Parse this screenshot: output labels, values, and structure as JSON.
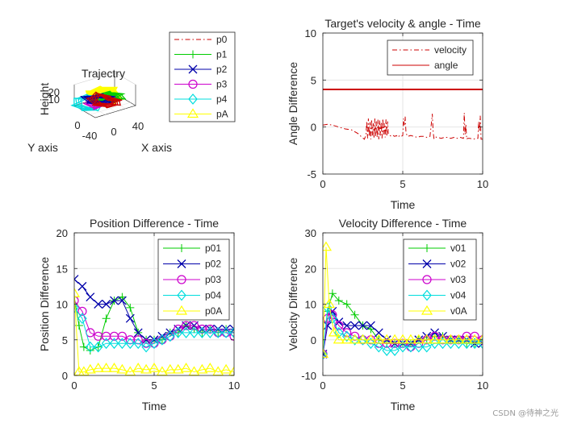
{
  "colors": {
    "p0": "#cc0000",
    "p1": "#00cc00",
    "p2": "#0000aa",
    "p3": "#cc00cc",
    "p4": "#00dddd",
    "pA": "#ffff00",
    "angle": "#cc0000",
    "axis": "#262626",
    "grid": "#e6e6e6"
  },
  "chart_data": [
    {
      "id": "trajectory",
      "type": "scatter3d",
      "title": "Trajectry",
      "xlabel": "X axis",
      "ylabel": "Y axis",
      "zlabel": "Height",
      "x_ticks": [
        "0",
        "40"
      ],
      "y_ticks": [
        "-40",
        "0"
      ],
      "z_ticks": [
        "10",
        "20"
      ],
      "legend": {
        "position": "outside-right",
        "entries": [
          {
            "label": "p0",
            "color": "#cc0000",
            "line": "dashdot",
            "marker": "none"
          },
          {
            "label": "p1",
            "color": "#00cc00",
            "line": "solid",
            "marker": "plus"
          },
          {
            "label": "p2",
            "color": "#0000aa",
            "line": "solid",
            "marker": "x"
          },
          {
            "label": "p3",
            "color": "#cc00cc",
            "line": "solid",
            "marker": "circle"
          },
          {
            "label": "p4",
            "color": "#00dddd",
            "line": "solid",
            "marker": "diamond"
          },
          {
            "label": "pA",
            "color": "#ffff00",
            "line": "solid",
            "marker": "triangle"
          }
        ]
      }
    },
    {
      "id": "velocity_angle",
      "type": "line",
      "title": "Target's velocity & angle  - Time",
      "xlabel": "Time",
      "ylabel": "Angle Difference",
      "xlim": [
        0,
        10
      ],
      "ylim": [
        -5,
        10
      ],
      "x_ticks": [
        0,
        5,
        10
      ],
      "y_ticks": [
        -5,
        0,
        5,
        10
      ],
      "grid": true,
      "legend_position": "top-right",
      "series": [
        {
          "name": "velocity",
          "color": "#cc0000",
          "line": "dashdot",
          "marker": "none",
          "x": [
            0,
            0.3,
            0.6,
            1.0,
            1.4,
            1.8,
            2.2,
            2.45,
            2.6,
            2.7,
            2.75,
            2.8,
            2.85,
            2.9,
            2.95,
            3.0,
            3.05,
            3.1,
            3.15,
            3.2,
            3.25,
            3.3,
            3.35,
            3.4,
            3.45,
            3.5,
            3.55,
            3.6,
            3.65,
            3.7,
            3.75,
            3.8,
            3.85,
            3.9,
            3.95,
            4.0,
            4.05,
            4.1,
            4.2,
            4.3,
            4.4,
            4.5,
            4.6,
            4.7,
            4.8,
            4.9,
            5.0,
            5.05,
            5.1,
            5.15,
            5.2,
            5.3,
            5.5,
            5.7,
            5.9,
            6.1,
            6.3,
            6.5,
            6.7,
            6.8,
            6.85,
            6.9,
            6.95,
            7.0,
            7.05,
            7.1,
            7.2,
            7.4,
            7.6,
            7.8,
            8.0,
            8.2,
            8.4,
            8.6,
            8.8,
            8.85,
            8.9,
            8.95,
            9.0,
            9.05,
            9.1,
            9.2,
            9.4,
            9.6,
            9.7,
            9.75,
            9.8,
            9.85,
            9.9,
            10.0
          ],
          "y": [
            0.2,
            0.3,
            0.2,
            0.0,
            -0.2,
            -0.3,
            -0.7,
            -1.1,
            -1.3,
            -0.8,
            0.6,
            -1.2,
            0.9,
            -1.0,
            0.5,
            -1.3,
            0.8,
            -0.9,
            0.4,
            -1.2,
            0.9,
            -1.0,
            0.6,
            -1.1,
            0.8,
            -1.3,
            0.7,
            -0.9,
            0.5,
            -1.2,
            0.9,
            -0.8,
            0.4,
            -1.1,
            0.8,
            -1.0,
            0.6,
            -0.8,
            -0.9,
            -1.0,
            -0.9,
            -1.0,
            -0.9,
            -1.1,
            -0.9,
            -1.0,
            -0.9,
            0.9,
            0.2,
            1.1,
            -0.6,
            -1.0,
            -0.9,
            -1.0,
            -1.1,
            -1.0,
            -1.0,
            -1.1,
            -1.0,
            0.5,
            1.4,
            -0.5,
            -1.2,
            -1.1,
            -1.0,
            -1.1,
            -1.1,
            -1.2,
            -1.1,
            -1.1,
            -1.2,
            -1.1,
            -1.2,
            -1.1,
            -1.2,
            1.5,
            -0.8,
            0.3,
            -1.3,
            -1.2,
            -1.2,
            -1.2,
            -1.3,
            -1.2,
            -1.2,
            0.6,
            -0.5,
            1.2,
            -1.3,
            -1.3
          ]
        },
        {
          "name": "angle",
          "color": "#cc0000",
          "line": "solid",
          "marker": "none",
          "x": [
            0,
            10
          ],
          "y": [
            4.0,
            4.0
          ]
        }
      ]
    },
    {
      "id": "position_difference",
      "type": "line",
      "title": "Position Difference - Time",
      "xlabel": "Time",
      "ylabel": "Position Difference",
      "xlim": [
        0,
        10
      ],
      "ylim": [
        0,
        20
      ],
      "x_ticks": [
        0,
        5,
        10
      ],
      "y_ticks": [
        0,
        5,
        10,
        15,
        20
      ],
      "grid": true,
      "legend_position": "top-right",
      "series": [
        {
          "name": "p01",
          "color": "#00cc00",
          "marker": "plus",
          "x": [
            0,
            0.3,
            0.6,
            1.0,
            1.5,
            2.0,
            2.5,
            3.0,
            3.5,
            4.0,
            4.5,
            5.0,
            5.5,
            6.0,
            6.5,
            7.0,
            7.5,
            8.0,
            8.5,
            9.0,
            9.5,
            10.0
          ],
          "y": [
            11,
            7,
            4,
            3.5,
            4,
            8,
            10.5,
            11,
            9.5,
            6,
            5,
            5,
            5,
            6,
            6,
            7,
            6.5,
            6,
            6.5,
            6,
            6.5,
            6
          ]
        },
        {
          "name": "p02",
          "color": "#0000aa",
          "marker": "x",
          "x": [
            0,
            0.5,
            1.0,
            1.5,
            2.0,
            2.5,
            3.0,
            3.5,
            4.0,
            4.5,
            5.0,
            5.5,
            6.0,
            6.5,
            7.0,
            7.5,
            8.0,
            8.5,
            9.0,
            9.5,
            10.0
          ],
          "y": [
            13.5,
            12.5,
            11,
            10,
            10,
            10.5,
            10.5,
            8,
            6,
            5,
            5,
            5.5,
            6,
            6.5,
            7,
            7,
            6.5,
            6.5,
            6.5,
            6.5,
            6.5
          ]
        },
        {
          "name": "p03",
          "color": "#cc00cc",
          "marker": "circle",
          "x": [
            0,
            0.5,
            1.0,
            1.5,
            2.0,
            2.5,
            3.0,
            3.5,
            4.0,
            4.5,
            5.0,
            5.5,
            6.0,
            6.5,
            7.0,
            7.5,
            8.0,
            8.5,
            9.0,
            9.5,
            10.0
          ],
          "y": [
            10.5,
            9,
            6,
            5.5,
            5.5,
            5.5,
            5.5,
            5,
            5,
            4.5,
            4.5,
            5,
            5.5,
            6.5,
            7,
            7,
            6.5,
            6.5,
            6,
            6,
            5.5
          ]
        },
        {
          "name": "p04",
          "color": "#00dddd",
          "marker": "diamond",
          "x": [
            0,
            0.5,
            1.0,
            1.5,
            2.0,
            2.5,
            3.0,
            3.5,
            4.0,
            4.5,
            5.0,
            5.5,
            6.0,
            6.5,
            7.0,
            7.5,
            8.0,
            8.5,
            9.0,
            9.5,
            10.0
          ],
          "y": [
            9.5,
            8,
            4,
            4,
            4.5,
            4.5,
            4.5,
            4.5,
            4.5,
            4,
            4.5,
            5,
            5.5,
            6,
            6,
            6,
            6,
            6,
            6,
            6,
            6
          ]
        },
        {
          "name": "p0A",
          "color": "#ffff00",
          "marker": "triangle",
          "x": [
            0,
            0.3,
            0.6,
            1.0,
            1.5,
            2.0,
            2.5,
            3.0,
            3.5,
            4.0,
            4.5,
            5.0,
            5.5,
            6.0,
            6.5,
            7.0,
            7.5,
            8.0,
            8.5,
            9.0,
            9.5,
            10.0
          ],
          "y": [
            11.5,
            0.5,
            0.5,
            0.8,
            1.0,
            1.0,
            1.0,
            0.8,
            0.5,
            1.0,
            0.8,
            1.0,
            0.5,
            0.8,
            0.8,
            1.0,
            0.5,
            0.8,
            1.0,
            0.5,
            0.8,
            0.5
          ]
        }
      ]
    },
    {
      "id": "velocity_difference",
      "type": "line",
      "title": "Velocity Difference - Time",
      "xlabel": "Time",
      "ylabel": "Velocity Difference",
      "xlim": [
        0,
        10
      ],
      "ylim": [
        -10,
        30
      ],
      "x_ticks": [
        0,
        5,
        10
      ],
      "y_ticks": [
        -10,
        0,
        10,
        20,
        30
      ],
      "grid": true,
      "legend_position": "top-right",
      "series": [
        {
          "name": "v01",
          "color": "#00cc00",
          "marker": "plus",
          "x": [
            0,
            0.3,
            0.6,
            1.0,
            1.5,
            2.0,
            2.5,
            3.0,
            3.5,
            4.0,
            4.5,
            5.0,
            5.5,
            6.0,
            6.5,
            7.0,
            7.5,
            8.0,
            8.5,
            9.0,
            9.5,
            10.0
          ],
          "y": [
            -4,
            8,
            13,
            11,
            10,
            7,
            4,
            3,
            0,
            -1,
            -1,
            -1,
            -1,
            0,
            0,
            1,
            1,
            0,
            0,
            -1,
            -1,
            0
          ]
        },
        {
          "name": "v02",
          "color": "#0000aa",
          "marker": "x",
          "x": [
            0,
            0.3,
            0.6,
            1.0,
            1.5,
            2.0,
            2.5,
            3.0,
            3.5,
            4.0,
            4.5,
            5.0,
            5.5,
            6.0,
            6.5,
            7.0,
            7.5,
            8.0,
            8.5,
            9.0,
            9.5,
            10.0
          ],
          "y": [
            -4,
            4,
            8,
            5,
            4,
            4,
            4,
            4,
            2,
            0,
            -1,
            -1,
            -1,
            0,
            1,
            2,
            1,
            0,
            0,
            0,
            -1,
            -1
          ]
        },
        {
          "name": "v03",
          "color": "#cc00cc",
          "marker": "circle",
          "x": [
            0,
            0.3,
            0.6,
            1.0,
            1.5,
            2.0,
            2.5,
            3.0,
            3.5,
            4.0,
            4.5,
            5.0,
            5.5,
            6.0,
            6.5,
            7.0,
            7.5,
            8.0,
            8.5,
            9.0,
            9.5,
            10.0
          ],
          "y": [
            -4,
            6,
            7,
            4,
            2,
            1,
            0,
            0,
            -1,
            -1,
            -1,
            -1,
            -2,
            -1,
            0,
            1,
            0,
            0,
            0,
            1,
            1,
            0
          ]
        },
        {
          "name": "v04",
          "color": "#00dddd",
          "marker": "diamond",
          "x": [
            0,
            0.3,
            0.6,
            1.0,
            1.5,
            2.0,
            2.5,
            3.0,
            3.5,
            4.0,
            4.5,
            5.0,
            5.5,
            6.0,
            6.5,
            7.0,
            7.5,
            8.0,
            8.5,
            9.0,
            9.5,
            10.0
          ],
          "y": [
            -4,
            9,
            6,
            2,
            1,
            0,
            0,
            -1,
            -2,
            -3,
            -3,
            -2,
            -2,
            -2,
            -2,
            -1,
            -1,
            -1,
            -1,
            -1,
            -1,
            -1
          ]
        },
        {
          "name": "v0A",
          "color": "#ffff00",
          "marker": "triangle",
          "x": [
            0,
            0.2,
            0.4,
            0.7,
            1.0,
            1.5,
            2.0,
            2.5,
            3.0,
            3.5,
            4.0,
            4.5,
            5.0,
            5.5,
            6.0,
            6.5,
            7.0,
            7.5,
            8.0,
            8.5,
            9.0,
            9.5,
            10.0
          ],
          "y": [
            -4,
            26,
            10,
            2,
            0,
            0,
            0,
            0,
            0,
            0,
            0,
            0,
            0,
            0,
            0,
            0,
            0,
            0,
            0,
            0,
            0,
            0,
            0
          ]
        }
      ]
    }
  ],
  "watermark": "CSDN @待神之光"
}
